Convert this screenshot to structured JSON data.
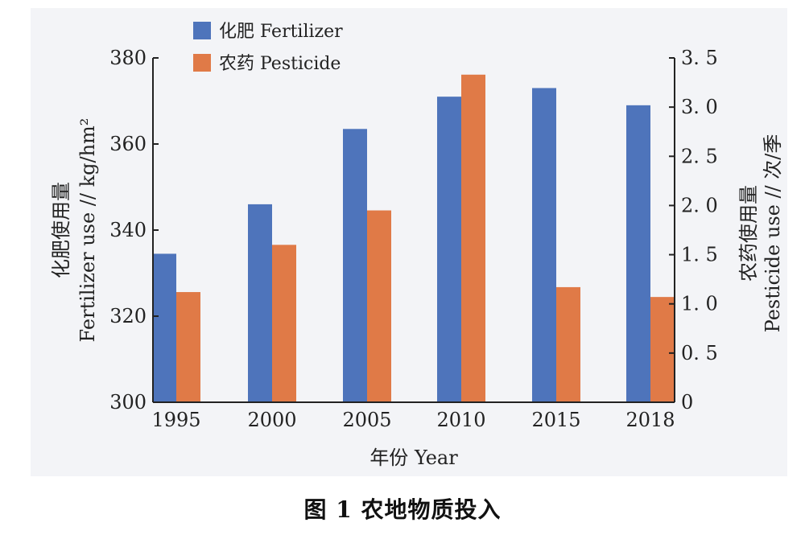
{
  "chart_data": {
    "type": "bar",
    "categories": [
      "1995",
      "2000",
      "2005",
      "2010",
      "2015",
      "2018"
    ],
    "series": [
      {
        "name": "化肥 Fertilizer",
        "axis": "left",
        "color": "#4e74bb",
        "values": [
          334.5,
          346,
          363.5,
          371,
          373,
          369
        ]
      },
      {
        "name": "农药 Pesticide",
        "axis": "right",
        "color": "#e07a47",
        "values": [
          1.12,
          1.6,
          1.95,
          3.33,
          1.17,
          1.07
        ]
      }
    ],
    "xlabel": "年份 Year",
    "ylabel_left": [
      "化肥使用量",
      "Fertilizer use // kg/hm²"
    ],
    "ylabel_right": [
      "农药使用量",
      "Pesticide use // 次/季"
    ],
    "ylim_left": [
      300,
      380
    ],
    "yticks_left": [
      "300",
      "320",
      "340",
      "360",
      "380"
    ],
    "ylim_right": [
      0,
      3.5
    ],
    "yticks_right": [
      "0",
      "0. 5",
      "1. 0",
      "1. 5",
      "2. 0",
      "2. 5",
      "3. 0",
      "3. 5"
    ],
    "legend_position": "top-left",
    "grid": false
  },
  "caption": "图 1    农地物质投入"
}
